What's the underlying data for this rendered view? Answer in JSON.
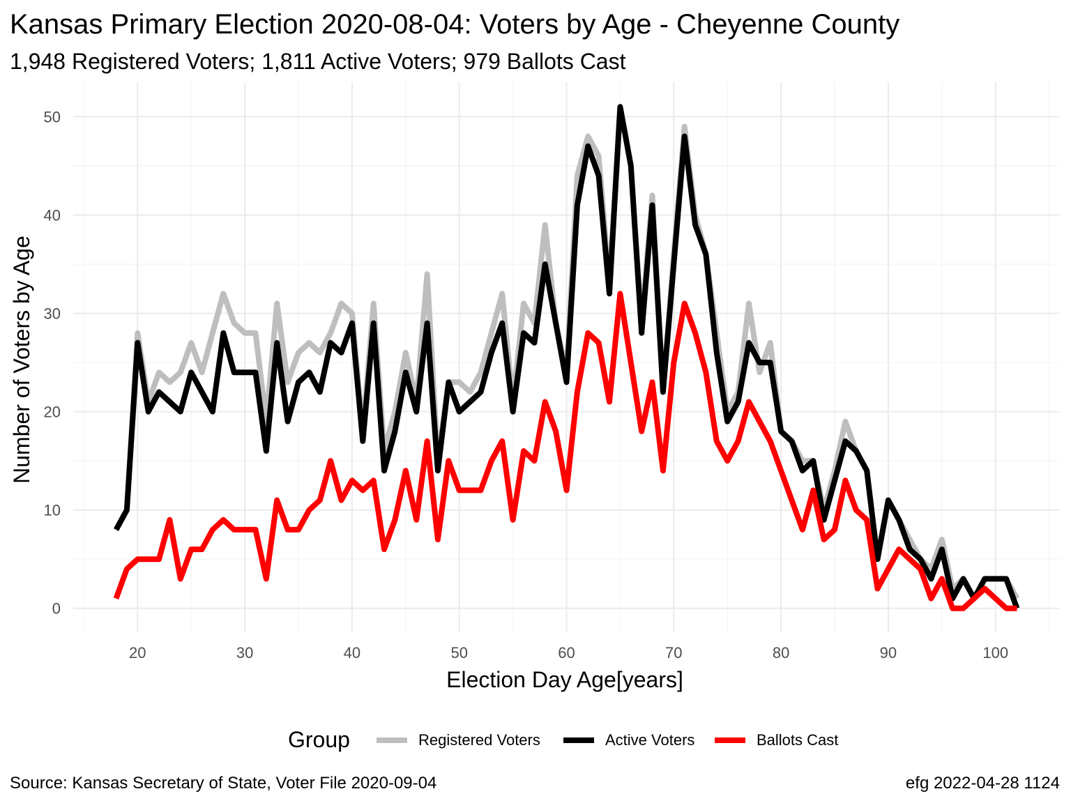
{
  "chart_data": {
    "type": "line",
    "title": "Kansas Primary Election 2020-08-04:  Voters by Age - Cheyenne County",
    "subtitle": "1,948 Registered Voters; 1,811 Active Voters; 979 Ballots Cast",
    "xlabel": "Election Day Age[years]",
    "ylabel": "Number of Voters by Age",
    "xlim": [
      14,
      106
    ],
    "ylim": [
      -2.5,
      53.5
    ],
    "x_ticks": [
      20,
      30,
      40,
      50,
      60,
      70,
      80,
      90,
      100
    ],
    "y_ticks": [
      0,
      10,
      20,
      30,
      40,
      50
    ],
    "grid": true,
    "legend": {
      "title": "Group",
      "position": "bottom",
      "entries": [
        "Registered Voters",
        "Active Voters",
        "Ballots Cast"
      ]
    },
    "x": [
      18,
      19,
      20,
      21,
      22,
      23,
      24,
      25,
      26,
      27,
      28,
      29,
      30,
      31,
      32,
      33,
      34,
      35,
      36,
      37,
      38,
      39,
      40,
      41,
      42,
      43,
      44,
      45,
      46,
      47,
      48,
      49,
      50,
      51,
      52,
      53,
      54,
      55,
      56,
      57,
      58,
      59,
      60,
      61,
      62,
      63,
      64,
      65,
      66,
      67,
      68,
      69,
      70,
      71,
      72,
      73,
      74,
      75,
      76,
      77,
      78,
      79,
      80,
      81,
      82,
      83,
      84,
      85,
      86,
      87,
      88,
      89,
      90,
      91,
      92,
      93,
      94,
      95,
      96,
      97,
      98,
      99,
      100,
      101,
      102
    ],
    "series": [
      {
        "name": "Registered Voters",
        "color": "#bebebe",
        "values": [
          8,
          10,
          28,
          21,
          24,
          23,
          24,
          27,
          24,
          28,
          32,
          29,
          28,
          28,
          19,
          31,
          23,
          26,
          27,
          26,
          28,
          31,
          30,
          18,
          31,
          16,
          20,
          26,
          21,
          34,
          15,
          23,
          23,
          22,
          24,
          28,
          32,
          21,
          31,
          29,
          39,
          29,
          24,
          44,
          48,
          46,
          33,
          51,
          45,
          29,
          42,
          22,
          36,
          49,
          40,
          36,
          28,
          20,
          22,
          31,
          24,
          27,
          18,
          17,
          15,
          15,
          10,
          14,
          19,
          16,
          14,
          5,
          11,
          9,
          7,
          5,
          4,
          7,
          2,
          3,
          1,
          3,
          3,
          3,
          1
        ],
        "values_note": ""
      },
      {
        "name": "Active Voters",
        "color": "#000000",
        "values": [
          8,
          10,
          27,
          20,
          22,
          21,
          20,
          24,
          22,
          20,
          28,
          24,
          24,
          24,
          16,
          27,
          19,
          23,
          24,
          22,
          27,
          26,
          29,
          17,
          29,
          14,
          18,
          24,
          20,
          29,
          14,
          23,
          20,
          21,
          22,
          26,
          29,
          20,
          28,
          27,
          35,
          29,
          23,
          41,
          47,
          44,
          32,
          51,
          45,
          28,
          41,
          22,
          35,
          48,
          39,
          36,
          26,
          19,
          21,
          27,
          25,
          25,
          18,
          17,
          14,
          15,
          9,
          13,
          17,
          16,
          14,
          5,
          11,
          9,
          6,
          5,
          3,
          6,
          1,
          3,
          1,
          3,
          3,
          3,
          0
        ]
      },
      {
        "name": "Ballots Cast",
        "color": "#ff0000",
        "values": [
          1,
          4,
          5,
          5,
          5,
          9,
          3,
          6,
          6,
          8,
          9,
          8,
          8,
          8,
          3,
          11,
          8,
          8,
          10,
          11,
          15,
          11,
          13,
          12,
          13,
          6,
          9,
          14,
          9,
          17,
          7,
          15,
          12,
          12,
          12,
          15,
          17,
          9,
          16,
          15,
          21,
          18,
          12,
          22,
          28,
          27,
          21,
          32,
          25,
          18,
          23,
          14,
          25,
          31,
          28,
          24,
          17,
          15,
          17,
          21,
          19,
          17,
          14,
          11,
          8,
          12,
          7,
          8,
          13,
          10,
          9,
          2,
          4,
          6,
          5,
          4,
          1,
          3,
          0,
          0,
          1,
          2,
          1,
          0,
          0
        ]
      }
    ]
  },
  "caption": {
    "left": "Source:  Kansas Secretary of State, Voter File  2020-09-04",
    "right": "efg 2022-04-28 1124"
  }
}
